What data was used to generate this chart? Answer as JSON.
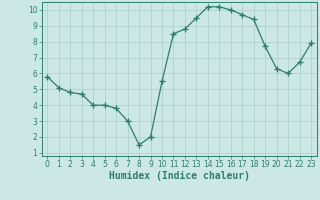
{
  "x": [
    0,
    1,
    2,
    3,
    4,
    5,
    6,
    7,
    8,
    9,
    10,
    11,
    12,
    13,
    14,
    15,
    16,
    17,
    18,
    19,
    20,
    21,
    22,
    23
  ],
  "y": [
    5.8,
    5.1,
    4.8,
    4.7,
    4.0,
    4.0,
    3.8,
    3.0,
    1.5,
    2.0,
    5.5,
    8.5,
    8.8,
    9.5,
    10.2,
    10.2,
    10.0,
    9.7,
    9.4,
    7.7,
    6.3,
    6.0,
    6.7,
    7.9
  ],
  "line_color": "#2d7d6e",
  "marker": "+",
  "markersize": 4,
  "linewidth": 0.9,
  "bg_color": "#cce8e4",
  "grid_color": "#aaccc8",
  "xlabel": "Humidex (Indice chaleur)",
  "xlim": [
    -0.5,
    23.5
  ],
  "ylim": [
    0.8,
    10.5
  ],
  "xticks": [
    0,
    1,
    2,
    3,
    4,
    5,
    6,
    7,
    8,
    9,
    10,
    11,
    12,
    13,
    14,
    15,
    16,
    17,
    18,
    19,
    20,
    21,
    22,
    23
  ],
  "yticks": [
    1,
    2,
    3,
    4,
    5,
    6,
    7,
    8,
    9,
    10
  ],
  "tick_fontsize": 5.5,
  "xlabel_fontsize": 7,
  "axis_color": "#2d7d6e",
  "title": ""
}
